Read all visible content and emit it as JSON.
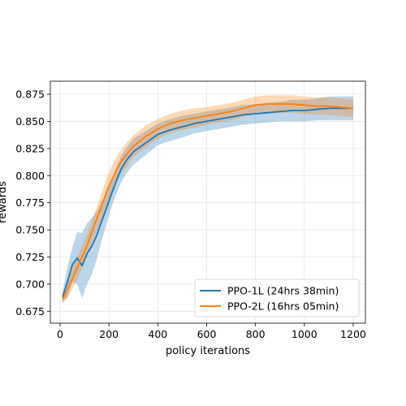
{
  "chart_data": {
    "type": "line",
    "title": "",
    "xlabel": "policy iterations",
    "ylabel": "rewards",
    "xlim": [
      -40,
      1250
    ],
    "ylim": [
      0.664,
      0.887
    ],
    "xticks": [
      0,
      200,
      400,
      600,
      800,
      1000,
      1200
    ],
    "xtick_labels": [
      "0",
      "200",
      "400",
      "600",
      "800",
      "1000",
      "1200"
    ],
    "yticks": [
      0.675,
      0.7,
      0.725,
      0.75,
      0.775,
      0.8,
      0.825,
      0.85,
      0.875
    ],
    "ytick_labels": [
      "0.675",
      "0.700",
      "0.725",
      "0.750",
      "0.775",
      "0.800",
      "0.825",
      "0.850",
      "0.875"
    ],
    "grid": true,
    "legend_position": "bottom-right",
    "series": [
      {
        "name": "PPO-1L (24hrs 38min)",
        "color": "#1f77b4",
        "x": [
          10,
          30,
          50,
          70,
          90,
          110,
          130,
          150,
          170,
          190,
          210,
          230,
          250,
          275,
          300,
          350,
          400,
          450,
          500,
          550,
          600,
          650,
          700,
          750,
          800,
          850,
          900,
          950,
          1000,
          1050,
          1100,
          1150,
          1200
        ],
        "y": [
          0.688,
          0.702,
          0.718,
          0.724,
          0.717,
          0.728,
          0.735,
          0.745,
          0.758,
          0.77,
          0.783,
          0.795,
          0.806,
          0.815,
          0.822,
          0.83,
          0.838,
          0.842,
          0.845,
          0.848,
          0.85,
          0.852,
          0.854,
          0.856,
          0.857,
          0.858,
          0.859,
          0.86,
          0.86,
          0.861,
          0.862,
          0.862,
          0.862
        ],
        "band_half_width": [
          0.005,
          0.014,
          0.016,
          0.024,
          0.03,
          0.028,
          0.026,
          0.022,
          0.018,
          0.015,
          0.012,
          0.012,
          0.012,
          0.012,
          0.012,
          0.011,
          0.01,
          0.01,
          0.01,
          0.009,
          0.009,
          0.009,
          0.009,
          0.009,
          0.009,
          0.009,
          0.009,
          0.01,
          0.01,
          0.01,
          0.011,
          0.011,
          0.011
        ]
      },
      {
        "name": "PPO-2L (16hrs 05min)",
        "color": "#ff7f0e",
        "x": [
          10,
          30,
          50,
          70,
          90,
          110,
          130,
          150,
          170,
          190,
          210,
          230,
          250,
          275,
          300,
          350,
          400,
          450,
          500,
          550,
          600,
          650,
          700,
          750,
          800,
          850,
          900,
          950,
          1000,
          1050,
          1100,
          1150,
          1200
        ],
        "y": [
          0.686,
          0.695,
          0.705,
          0.715,
          0.725,
          0.735,
          0.748,
          0.76,
          0.772,
          0.785,
          0.795,
          0.805,
          0.813,
          0.82,
          0.827,
          0.836,
          0.843,
          0.848,
          0.851,
          0.853,
          0.855,
          0.857,
          0.859,
          0.862,
          0.865,
          0.866,
          0.866,
          0.866,
          0.865,
          0.864,
          0.864,
          0.863,
          0.862
        ],
        "band_half_width": [
          0.004,
          0.008,
          0.01,
          0.01,
          0.01,
          0.01,
          0.01,
          0.011,
          0.012,
          0.013,
          0.013,
          0.012,
          0.011,
          0.011,
          0.01,
          0.01,
          0.009,
          0.009,
          0.009,
          0.009,
          0.008,
          0.008,
          0.008,
          0.008,
          0.008,
          0.008,
          0.008,
          0.008,
          0.008,
          0.008,
          0.008,
          0.008,
          0.008
        ]
      }
    ]
  }
}
